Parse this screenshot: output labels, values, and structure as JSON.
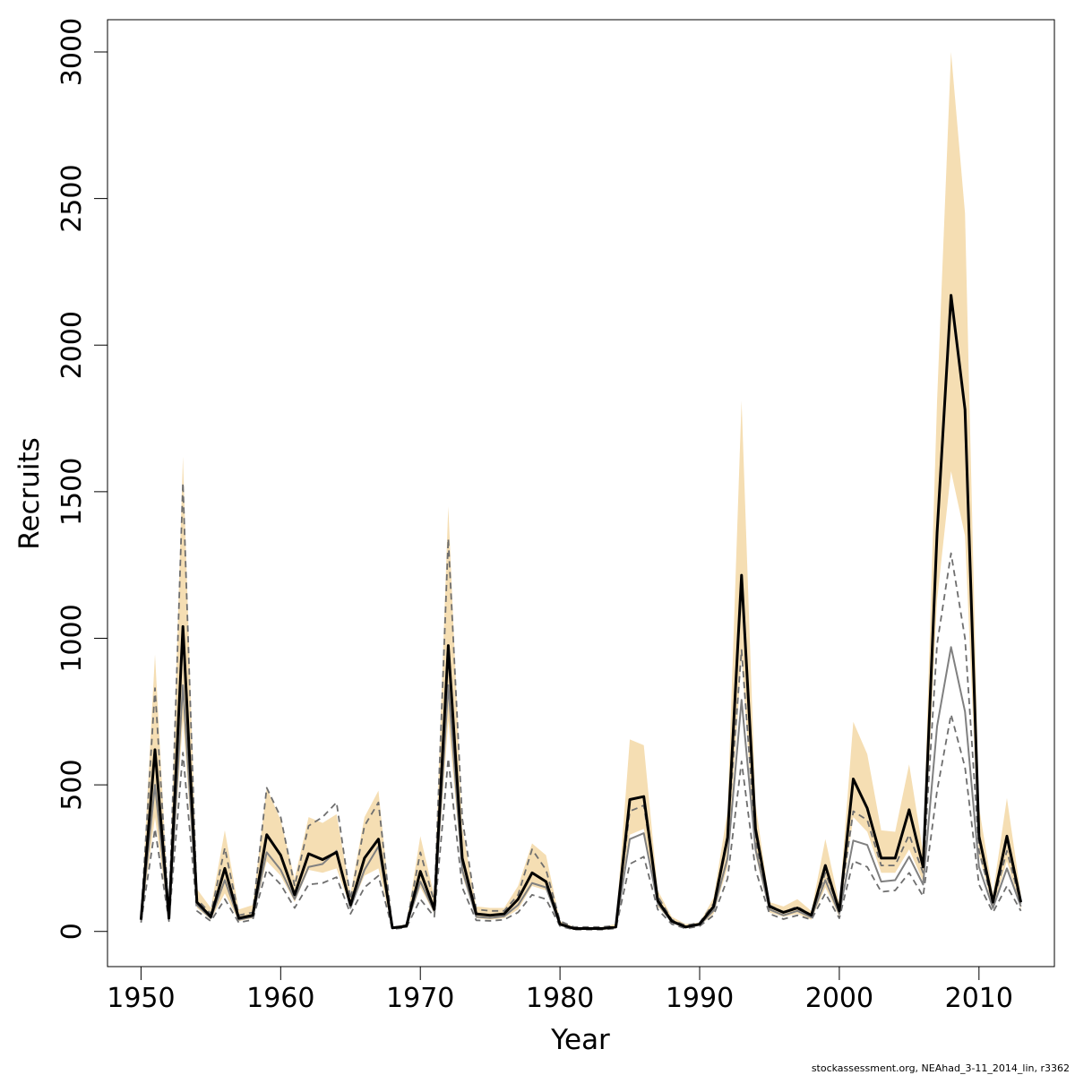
{
  "chart_data": {
    "type": "line",
    "title": "",
    "xlabel": "Year",
    "ylabel": "Recruits",
    "xlim": [
      1947.6,
      2015.4
    ],
    "ylim": [
      -120,
      3110
    ],
    "x_ticks": [
      1950,
      1960,
      1970,
      1980,
      1990,
      2000,
      2010
    ],
    "y_ticks": [
      0,
      500,
      1000,
      1500,
      2000,
      2500,
      3000
    ],
    "grid": false,
    "legend": "none",
    "x": [
      1950,
      1951,
      1952,
      1953,
      1954,
      1955,
      1956,
      1957,
      1958,
      1959,
      1960,
      1961,
      1962,
      1963,
      1964,
      1965,
      1966,
      1967,
      1968,
      1969,
      1970,
      1971,
      1972,
      1973,
      1974,
      1975,
      1976,
      1977,
      1978,
      1979,
      1980,
      1981,
      1982,
      1983,
      1984,
      1985,
      1986,
      1987,
      1988,
      1989,
      1990,
      1991,
      1992,
      1993,
      1994,
      1995,
      1996,
      1997,
      1998,
      1999,
      2000,
      2001,
      2002,
      2003,
      2004,
      2005,
      2006,
      2007,
      2008,
      2009,
      2010,
      2011,
      2012,
      2013
    ],
    "colors": {
      "band": "#f5deb3",
      "estimate": "#000000",
      "alt_estimate": "#808080",
      "alt_interval": "#6e6e6e"
    },
    "series": [
      {
        "role": "interval-band",
        "lower": [
          35,
          390,
          40,
          720,
          80,
          40,
          130,
          35,
          45,
          240,
          190,
          100,
          210,
          200,
          215,
          80,
          190,
          215,
          10,
          15,
          150,
          60,
          720,
          190,
          45,
          40,
          45,
          75,
          155,
          140,
          20,
          5,
          5,
          5,
          10,
          330,
          350,
          85,
          30,
          10,
          20,
          60,
          220,
          940,
          260,
          65,
          50,
          60,
          40,
          150,
          50,
          390,
          340,
          200,
          200,
          280,
          170,
          1130,
          1570,
          1350,
          260,
          80,
          240,
          75
        ],
        "upper": [
          55,
          945,
          60,
          1620,
          145,
          80,
          345,
          75,
          90,
          490,
          380,
          180,
          390,
          370,
          400,
          130,
          390,
          480,
          15,
          25,
          325,
          120,
          1450,
          355,
          85,
          80,
          80,
          155,
          300,
          260,
          35,
          15,
          15,
          15,
          25,
          655,
          635,
          140,
          50,
          25,
          30,
          115,
          410,
          1810,
          435,
          100,
          85,
          110,
          70,
          315,
          95,
          715,
          605,
          345,
          340,
          570,
          270,
          1810,
          3000,
          2450,
          425,
          130,
          455,
          125
        ]
      },
      {
        "role": "estimate",
        "values": [
          40,
          620,
          45,
          1040,
          100,
          50,
          215,
          45,
          55,
          330,
          260,
          125,
          265,
          245,
          270,
          90,
          250,
          315,
          12,
          18,
          205,
          75,
          975,
          250,
          60,
          55,
          60,
          110,
          200,
          170,
          25,
          10,
          10,
          10,
          15,
          450,
          460,
          105,
          35,
          15,
          25,
          85,
          320,
          1215,
          350,
          85,
          65,
          80,
          55,
          225,
          70,
          520,
          420,
          250,
          250,
          415,
          220,
          1360,
          2170,
          1780,
          325,
          100,
          325,
          100
        ]
      },
      {
        "role": "alt-estimate",
        "values": [
          38,
          500,
          42,
          840,
          90,
          45,
          175,
          40,
          50,
          270,
          210,
          110,
          220,
          230,
          275,
          80,
          210,
          290,
          11,
          17,
          170,
          68,
          840,
          210,
          50,
          46,
          52,
          90,
          165,
          150,
          22,
          9,
          9,
          9,
          14,
          315,
          335,
          95,
          32,
          14,
          22,
          72,
          250,
          790,
          280,
          75,
          55,
          70,
          48,
          175,
          60,
          310,
          295,
          170,
          175,
          255,
          160,
          700,
          970,
          750,
          220,
          80,
          215,
          85
        ]
      },
      {
        "role": "alt-interval-upper",
        "values": [
          50,
          830,
          55,
          1530,
          110,
          60,
          285,
          55,
          65,
          490,
          390,
          155,
          360,
          390,
          440,
          110,
          360,
          440,
          13,
          22,
          270,
          100,
          1340,
          385,
          75,
          70,
          70,
          125,
          280,
          210,
          35,
          15,
          15,
          15,
          20,
          410,
          430,
          120,
          40,
          20,
          30,
          95,
          330,
          960,
          310,
          90,
          65,
          85,
          55,
          200,
          75,
          410,
          380,
          225,
          225,
          330,
          200,
          980,
          1290,
          1000,
          275,
          95,
          275,
          95
        ]
      },
      {
        "role": "alt-interval-lower",
        "values": [
          30,
          350,
          35,
          610,
          70,
          35,
          110,
          30,
          40,
          210,
          160,
          80,
          160,
          165,
          185,
          60,
          150,
          190,
          8,
          13,
          110,
          50,
          590,
          150,
          38,
          36,
          40,
          65,
          125,
          110,
          18,
          6,
          6,
          6,
          10,
          230,
          255,
          75,
          25,
          10,
          18,
          55,
          180,
          580,
          210,
          60,
          42,
          55,
          40,
          130,
          45,
          240,
          220,
          135,
          140,
          200,
          120,
          480,
          740,
          560,
          160,
          65,
          155,
          70
        ]
      }
    ],
    "footer": "stockassessment.org, NEAhad_3-11_2014_lin, r3362"
  }
}
